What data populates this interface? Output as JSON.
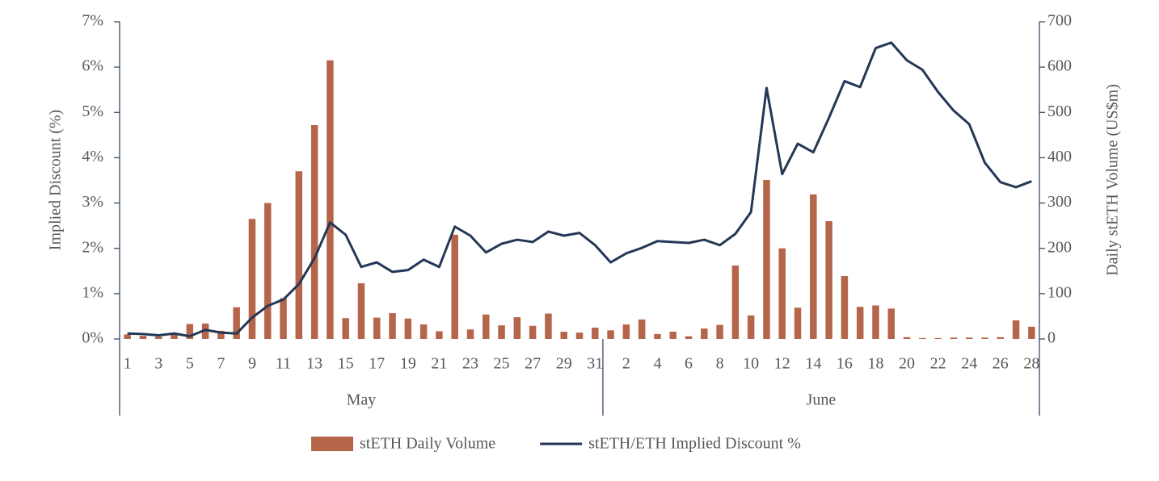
{
  "chart_data": {
    "type": "combo",
    "ylabel": "Implied Discount (%)",
    "y2label": "Daily stETH Volume (US$m)",
    "groups": [
      {
        "name": "May",
        "categories": [
          "1",
          null,
          "3",
          null,
          "5",
          null,
          "7",
          null,
          "9",
          null,
          "11",
          null,
          "13",
          null,
          "15",
          null,
          "17",
          null,
          "19",
          null,
          "21",
          null,
          "23",
          null,
          "25",
          null,
          "27",
          null,
          "29",
          null,
          "31"
        ]
      },
      {
        "name": "June",
        "categories": [
          null,
          "2",
          null,
          "4",
          null,
          "6",
          null,
          "8",
          null,
          "10",
          null,
          "12",
          null,
          "14",
          null,
          "16",
          null,
          "18",
          null,
          "20",
          null,
          "22",
          null,
          "24",
          null,
          "26",
          null,
          "28"
        ]
      }
    ],
    "series": [
      {
        "name": "stETH Daily Volume",
        "type": "bar",
        "axis": "y2",
        "color": "#b5654a",
        "values": [
          10,
          7,
          5,
          12,
          33,
          34,
          18,
          70,
          265,
          300,
          90,
          370,
          472,
          615,
          46,
          123,
          47,
          57,
          45,
          32,
          17,
          230,
          21,
          54,
          30,
          48,
          29,
          56,
          16,
          14,
          25,
          19,
          32,
          43,
          11,
          16,
          6,
          23,
          31,
          162,
          52,
          351,
          200,
          69,
          319,
          260,
          139,
          71,
          74,
          67,
          4,
          2,
          2,
          3,
          3,
          3,
          4,
          41,
          27
        ]
      },
      {
        "name": "stETH/ETH Implied Discount %",
        "type": "line",
        "color": "#243756",
        "values": [
          0.12,
          0.11,
          0.08,
          0.12,
          0.06,
          0.2,
          0.14,
          0.12,
          0.47,
          0.73,
          0.87,
          1.21,
          1.78,
          2.57,
          2.3,
          1.59,
          1.69,
          1.48,
          1.52,
          1.75,
          1.59,
          2.48,
          2.28,
          1.91,
          2.1,
          2.19,
          2.14,
          2.37,
          2.28,
          2.34,
          2.07,
          1.69,
          1.89,
          2.01,
          2.16,
          2.14,
          2.12,
          2.19,
          2.07,
          2.32,
          2.8,
          5.54,
          3.64,
          4.31,
          4.12,
          4.88,
          5.69,
          5.56,
          6.42,
          6.54,
          6.15,
          5.94,
          5.45,
          5.04,
          4.74,
          3.89,
          3.46,
          3.35,
          3.48
        ]
      }
    ],
    "ylim": [
      0,
      7
    ],
    "yticks": [
      {
        "value": 0,
        "label": "0%"
      },
      {
        "value": 1,
        "label": "1%"
      },
      {
        "value": 2,
        "label": "2%"
      },
      {
        "value": 3,
        "label": "3%"
      },
      {
        "value": 4,
        "label": "4%"
      },
      {
        "value": 5,
        "label": "5%"
      },
      {
        "value": 6,
        "label": "6%"
      },
      {
        "value": 7,
        "label": "7%"
      }
    ],
    "y2lim": [
      0,
      700
    ],
    "y2ticks": [
      0,
      100,
      200,
      300,
      400,
      500,
      600,
      700
    ],
    "grid": false,
    "legend": "bottom"
  }
}
